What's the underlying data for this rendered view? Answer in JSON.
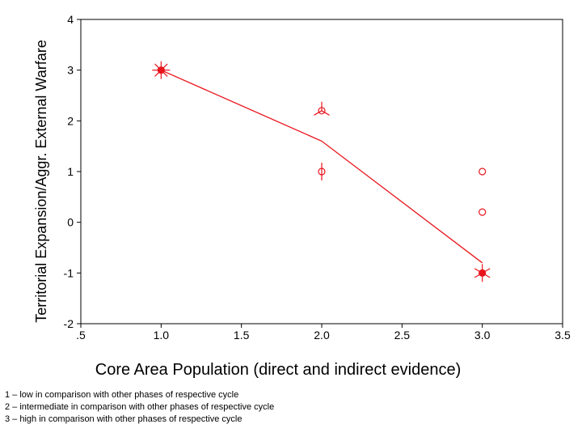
{
  "chart_data": {
    "type": "scatter",
    "xlabel": "Core Area Population (direct and indirect evidence)",
    "ylabel": "Territorial Expansion/Aggr. External Warfare",
    "xlim": [
      0.5,
      3.5
    ],
    "ylim": [
      -2,
      4
    ],
    "x_tick_labels": [
      ".5",
      "1.0",
      "1.5",
      "2.0",
      "2.5",
      "3.0",
      "3.5"
    ],
    "x_tick_values": [
      0.5,
      1.0,
      1.5,
      2.0,
      2.5,
      3.0,
      3.5
    ],
    "y_tick_labels": [
      "-2",
      "-1",
      "0",
      "1",
      "2",
      "3",
      "4"
    ],
    "y_tick_values": [
      -2,
      -1,
      0,
      1,
      2,
      3,
      4
    ],
    "grid": false,
    "color": "#e8141c",
    "series": [
      {
        "name": "observations",
        "marker": "circle-sunflower",
        "points": [
          {
            "x": 1.0,
            "y": 3.0,
            "petals": 8
          },
          {
            "x": 2.0,
            "y": 2.2,
            "petals": 3
          },
          {
            "x": 2.0,
            "y": 1.0,
            "petals": 2
          },
          {
            "x": 3.0,
            "y": 1.0,
            "petals": 0
          },
          {
            "x": 3.0,
            "y": 0.2,
            "petals": 0
          },
          {
            "x": 3.0,
            "y": -1.0,
            "petals": 6
          }
        ]
      },
      {
        "name": "fit line",
        "type": "line",
        "points": [
          {
            "x": 1.0,
            "y": 3.0
          },
          {
            "x": 2.0,
            "y": 1.6
          },
          {
            "x": 3.0,
            "y": -0.8
          }
        ]
      }
    ]
  },
  "footnotes": [
    "1 – low in comparison with other phases of respective cycle",
    "2 – intermediate in comparison with other phases of respective cycle",
    "3 – high in comparison with other phases of respective cycle"
  ]
}
